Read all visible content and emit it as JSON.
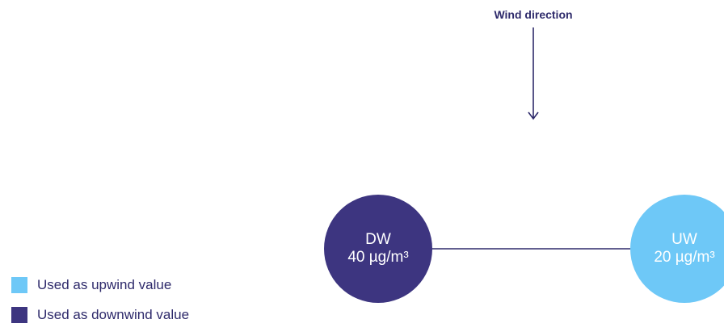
{
  "wind": {
    "label": "Wind direction",
    "arrow_icon": "arrow-down-icon"
  },
  "stations": {
    "downwind": {
      "code": "DW",
      "value": "40 µg/m³",
      "color": "#3d3580"
    },
    "upwind": {
      "code": "UW",
      "value": "20 µg/m³",
      "color": "#6ec8f7"
    }
  },
  "legend": {
    "items": [
      {
        "label": "Used as upwind value",
        "color": "#6ec8f7"
      },
      {
        "label": "Used as downwind value",
        "color": "#3d3580"
      }
    ]
  },
  "colors": {
    "text": "#2e2a6b",
    "line": "#2e2a6b"
  }
}
